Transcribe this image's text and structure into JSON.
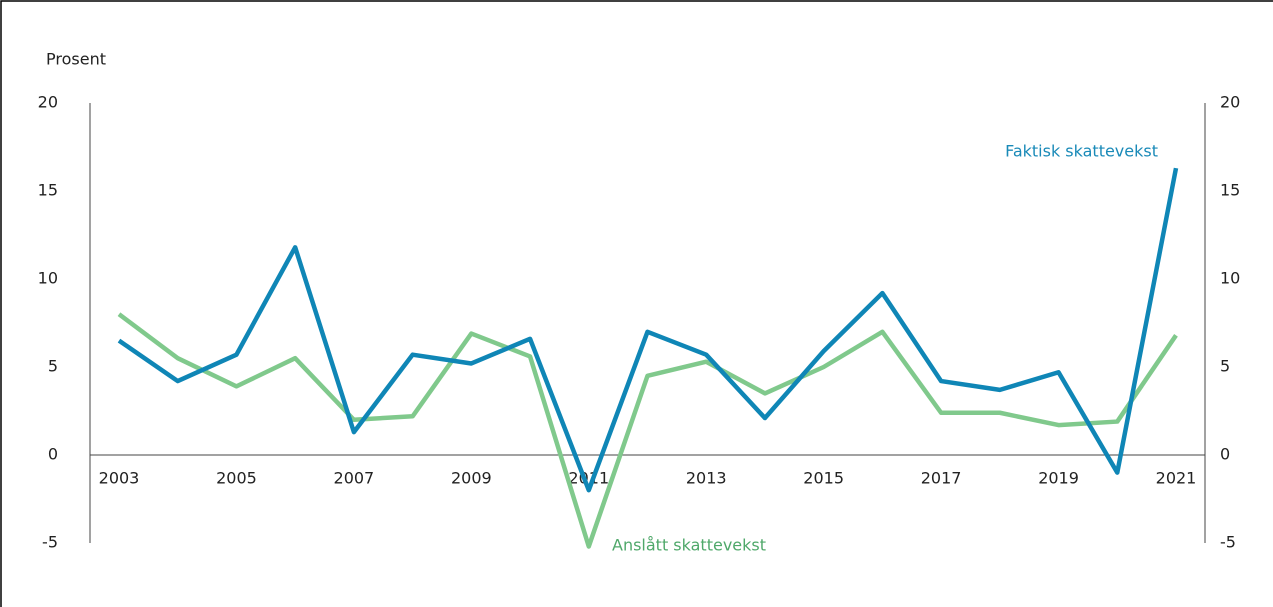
{
  "chart_data": {
    "type": "line",
    "y_label": "Prosent",
    "x": [
      2003,
      2004,
      2005,
      2006,
      2007,
      2008,
      2009,
      2010,
      2011,
      2012,
      2013,
      2014,
      2015,
      2016,
      2017,
      2018,
      2019,
      2020,
      2021
    ],
    "xlim": [
      2003,
      2021
    ],
    "xticks": [
      2003,
      2005,
      2007,
      2009,
      2011,
      2013,
      2015,
      2017,
      2019,
      2021
    ],
    "ylim": [
      -5,
      20
    ],
    "yticks": [
      -5,
      0,
      5,
      10,
      15,
      20
    ],
    "y2lim": [
      -5,
      20
    ],
    "y2ticks": [
      -5,
      0,
      5,
      10,
      15,
      20
    ],
    "grid": false,
    "series": [
      {
        "name": "Faktisk skattevekst",
        "color": "#0f86b6",
        "values": [
          6.5,
          4.2,
          5.7,
          11.8,
          1.3,
          5.7,
          5.2,
          6.6,
          -2.0,
          7.0,
          5.7,
          2.1,
          5.9,
          9.2,
          4.2,
          3.7,
          4.7,
          -1.0,
          16.3
        ]
      },
      {
        "name": "Anslått skattevekst",
        "color": "#80c98c",
        "values": [
          8.0,
          5.5,
          3.9,
          5.5,
          2.0,
          2.2,
          6.9,
          5.6,
          -5.2,
          4.5,
          5.3,
          3.5,
          5.0,
          7.0,
          2.4,
          2.4,
          1.7,
          1.9,
          6.8
        ]
      }
    ]
  }
}
